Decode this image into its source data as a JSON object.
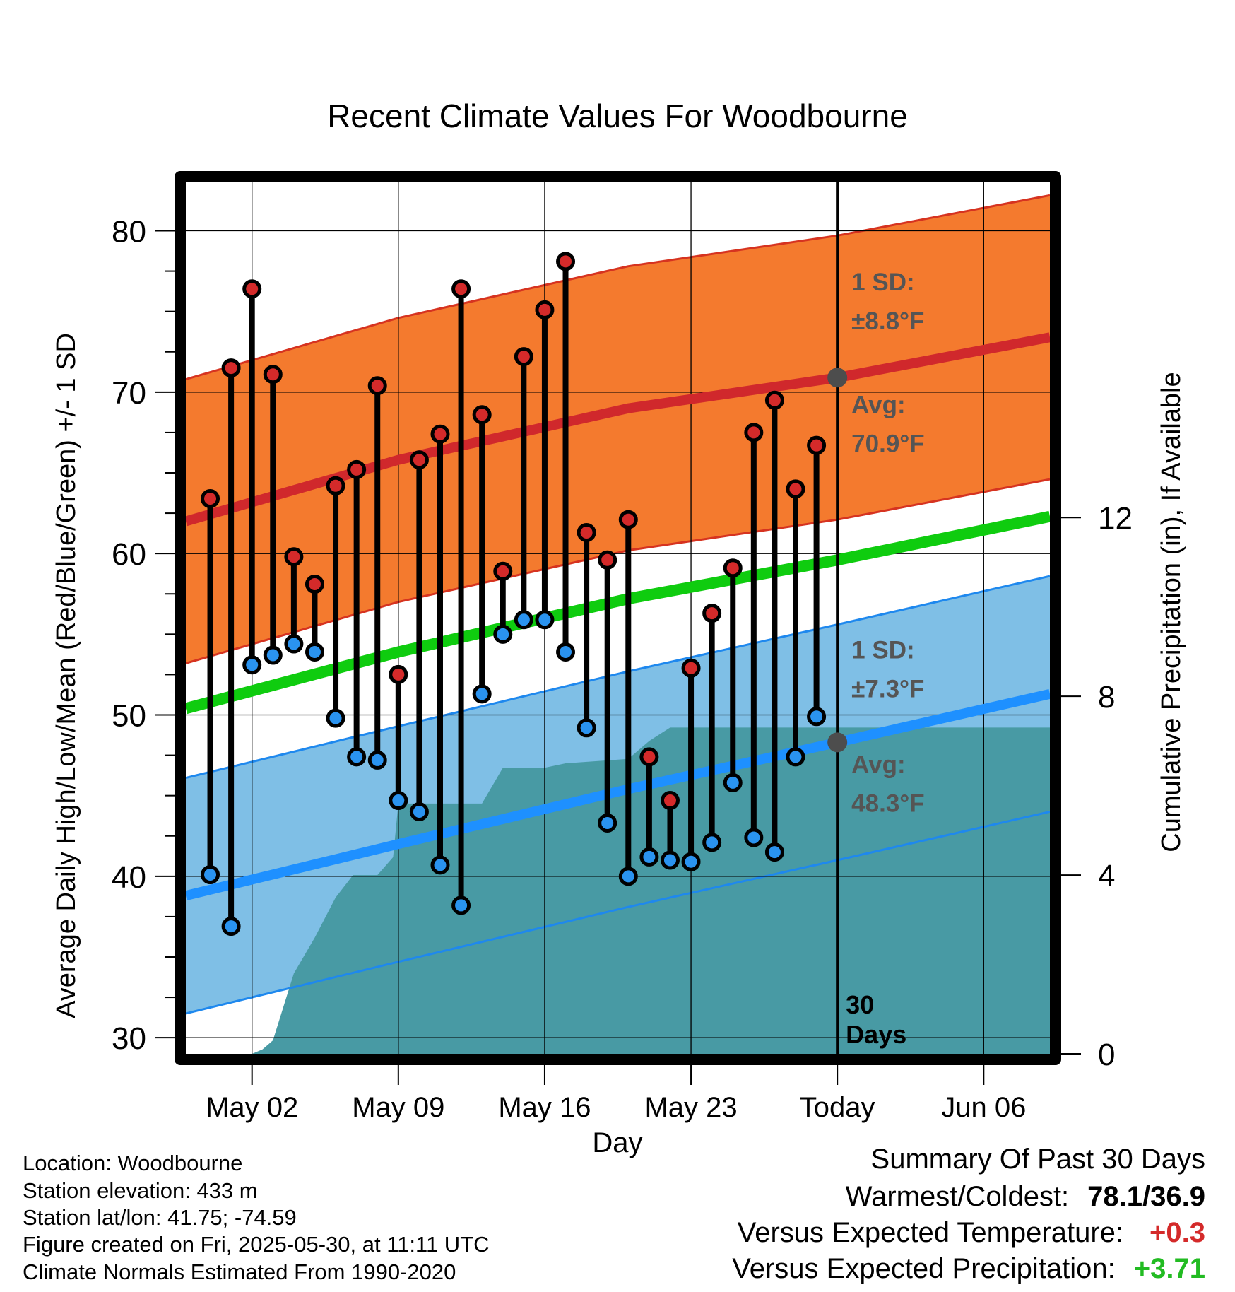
{
  "chart_data": {
    "type": "line",
    "title": "Recent Climate Values For Woodbourne",
    "xlabel": "Day",
    "ylabel": "Average Daily High/Low/Mean (Red/Blue/Green) +/- 1 SD",
    "y2label": "Cumulative Precipitation (in), If Available",
    "ylim": [
      29,
      83
    ],
    "y_ticks": [
      30,
      40,
      50,
      60,
      70,
      80
    ],
    "y2lim": [
      0,
      19.5
    ],
    "y2_ticks": [
      0,
      4,
      8,
      12
    ],
    "x_tick_labels": [
      {
        "date": "2025-05-02",
        "label": "May 02"
      },
      {
        "date": "2025-05-09",
        "label": "May 09"
      },
      {
        "date": "2025-05-16",
        "label": "May 16"
      },
      {
        "date": "2025-05-23",
        "label": "May 23"
      },
      {
        "date": "2025-05-30",
        "label": "Today"
      },
      {
        "date": "2025-06-06",
        "label": "Jun 06"
      }
    ],
    "xlim": [
      "2025-04-28T20:00",
      "2025-06-09T04:00"
    ],
    "today": "2025-05-30",
    "today_label": "30\nDays",
    "grid": true,
    "normals": {
      "dates": [
        "2025-04-28T20:00",
        "2025-05-09",
        "2025-05-20",
        "2025-05-30",
        "2025-06-09T04:00"
      ],
      "high_avg": [
        62.0,
        65.8,
        69.0,
        70.9,
        73.4
      ],
      "high_sd": 8.8,
      "low_avg": [
        38.8,
        42.0,
        45.4,
        48.3,
        51.3
      ],
      "low_sd": 7.3,
      "mean_avg": [
        50.4,
        53.9,
        57.2,
        59.6,
        62.3
      ]
    },
    "annotations": [
      {
        "text": "1 SD:",
        "series": "high"
      },
      {
        "text": "±8.8°F",
        "series": "high"
      },
      {
        "text": "Avg:",
        "series": "high"
      },
      {
        "text": "70.9°F",
        "series": "high"
      },
      {
        "text": "1 SD:",
        "series": "low"
      },
      {
        "text": "±7.3°F",
        "series": "low"
      },
      {
        "text": "Avg:",
        "series": "low"
      },
      {
        "text": "48.3°F",
        "series": "low"
      }
    ],
    "series": [
      {
        "dates": [
          "2025-04-30",
          "2025-05-01",
          "2025-05-02",
          "2025-05-03",
          "2025-05-04",
          "2025-05-05",
          "2025-05-06",
          "2025-05-07",
          "2025-05-08",
          "2025-05-09",
          "2025-05-10",
          "2025-05-11",
          "2025-05-12",
          "2025-05-13",
          "2025-05-14",
          "2025-05-15",
          "2025-05-16",
          "2025-05-17",
          "2025-05-18",
          "2025-05-19",
          "2025-05-20",
          "2025-05-21",
          "2025-05-22",
          "2025-05-23",
          "2025-05-24",
          "2025-05-25",
          "2025-05-26",
          "2025-05-27",
          "2025-05-28",
          "2025-05-29"
        ],
        "high": [
          63.4,
          71.5,
          76.4,
          71.1,
          59.8,
          58.1,
          64.2,
          65.2,
          70.4,
          52.5,
          65.8,
          67.4,
          76.4,
          68.6,
          58.9,
          72.2,
          75.1,
          78.1,
          61.3,
          59.6,
          62.1,
          47.4,
          44.7,
          52.9,
          56.3,
          59.1,
          67.5,
          69.5,
          64.0,
          66.7
        ],
        "low": [
          40.1,
          36.9,
          53.1,
          53.7,
          54.4,
          53.9,
          49.8,
          47.4,
          47.2,
          44.7,
          44.0,
          40.7,
          38.2,
          51.3,
          55.0,
          55.9,
          55.9,
          53.9,
          49.2,
          43.3,
          40.0,
          41.2,
          41.0,
          40.9,
          42.1,
          45.8,
          42.4,
          41.5,
          47.4,
          49.9
        ]
      }
    ],
    "precip": {
      "dates": [
        "2025-04-28T20:00",
        "2025-05-02",
        "2025-05-02T12:00",
        "2025-05-03",
        "2025-05-04",
        "2025-05-05",
        "2025-05-06",
        "2025-05-06T20:00",
        "2025-05-07",
        "2025-05-07T14:00",
        "2025-05-08",
        "2025-05-08T18:00",
        "2025-05-09",
        "2025-05-12",
        "2025-05-13",
        "2025-05-14",
        "2025-05-16",
        "2025-05-17",
        "2025-05-20",
        "2025-05-21",
        "2025-05-22",
        "2025-05-30",
        "2025-06-09T04:00"
      ],
      "cumulative": [
        0,
        0,
        0.1,
        0.3,
        1.8,
        2.6,
        3.5,
        4.0,
        4.0,
        4.0,
        4.0,
        4.4,
        5.6,
        5.6,
        5.6,
        6.4,
        6.4,
        6.5,
        6.6,
        7.0,
        7.3,
        7.3,
        7.3
      ]
    },
    "colors": {
      "high_band": "#f47a2e",
      "high_line": "#d0282c",
      "high_band_edge": "#d63320",
      "low_band": "#7fbfe6",
      "low_line": "#1e90ff",
      "low_band_edge": "#1e88ee",
      "mean_line": "#0fcc0f",
      "precip": "#489aa4",
      "high_marker": "#d42a2a",
      "low_marker": "#2a93f0",
      "normal_marker": "#4d4d4d",
      "annotation_text": "#555555"
    }
  },
  "footer": {
    "location": "Location: Woodbourne",
    "elevation": "Station elevation: 433 m",
    "latlon": "Station lat/lon: 41.75; -74.59",
    "created": "Figure created on Fri, 2025-05-30, at 11:11 UTC",
    "normals": "Climate Normals Estimated From 1990-2020"
  },
  "summary": {
    "title": "Summary Of Past 30 Days",
    "warm_cold_label": "Warmest/Coldest:",
    "warm_cold_value": "78.1/36.9",
    "temp_label": "Versus Expected Temperature:",
    "temp_value": "+0.3",
    "temp_color": "#d42a2a",
    "precip_label": "Versus Expected Precipitation:",
    "precip_value": "+3.71",
    "precip_color": "#22bb22"
  }
}
